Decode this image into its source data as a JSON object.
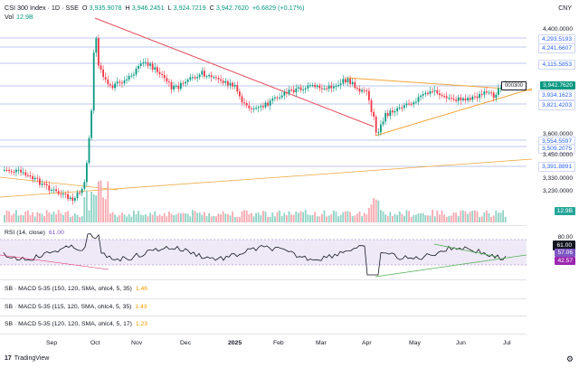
{
  "header": {
    "symbol": "CSI 300 Index · 1D · SSE",
    "open_label": "O",
    "open": "3,935.9078",
    "high_label": "H",
    "high": "3,946.2451",
    "low_label": "L",
    "low": "3,924.7219",
    "close_label": "C",
    "close": "3,942.7620",
    "change": "+6.6829 (+0.17%)",
    "currency": "CNY",
    "vol_label": "Vol",
    "vol_value": "12.9B"
  },
  "price_axis": {
    "ticks": [
      "4,400.0000",
      "4,293.5193",
      "4,241.6607",
      "4,115.5853",
      "3,942.7620",
      "3,934.1623",
      "3,821.4203",
      "3,600.0000",
      "3,554.5597",
      "3,509.2075",
      "3,450.0000",
      "3,391.8891",
      "3,330.0000",
      "3,230.0000",
      "12.9B"
    ],
    "current_tag": "000300"
  },
  "rsi": {
    "label": "RSI (14, close)",
    "value": "61.00",
    "levels": [
      "80.00",
      "61.00",
      "57.06",
      "42.57"
    ]
  },
  "indicators": [
    {
      "label": "SB · MACD 5-35 (150, 120, SMA, ohlc4, 5, 35)",
      "value": "1.46"
    },
    {
      "label": "SB · MACD 5-35 (115, 120, SMA, ohlc4, 5, 35)",
      "value": "1.43"
    },
    {
      "label": "SB · MACD 5-35 (120, 120, SMA, ohlc4, 5, 17)",
      "value": "1.23"
    }
  ],
  "time_axis": [
    "Sep",
    "Oct",
    "Nov",
    "Dec",
    "2025",
    "Feb",
    "Mar",
    "Apr",
    "May",
    "Jun",
    "Jul"
  ],
  "footer": {
    "brand": "TradingView"
  },
  "colors": {
    "up": "#089981",
    "down": "#f23645",
    "accent": "#2962ff"
  }
}
